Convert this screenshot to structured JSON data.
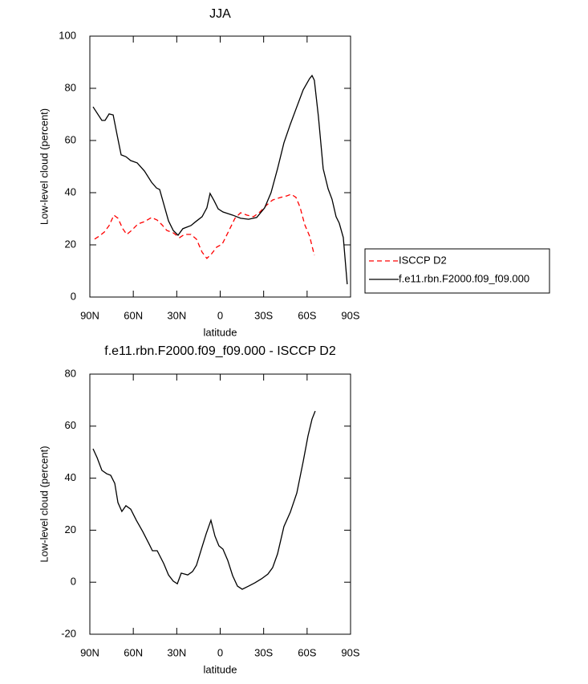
{
  "chart_data": [
    {
      "type": "line",
      "title": "JJA",
      "xlabel": "latitude",
      "ylabel": "Low-level cloud (percent)",
      "xlim": [
        90,
        -90
      ],
      "ylim": [
        0,
        100
      ],
      "xticks": [
        {
          "value": 90,
          "label": "90N"
        },
        {
          "value": 60,
          "label": "60N"
        },
        {
          "value": 30,
          "label": "30N"
        },
        0,
        {
          "value": -30,
          "label": "30S"
        },
        {
          "value": -60,
          "label": "60S"
        },
        {
          "value": -90,
          "label": "90S"
        }
      ],
      "yticks": [
        0,
        20,
        40,
        60,
        80,
        100
      ],
      "legend": "outside-right",
      "series": [
        {
          "name": "ISCCP D2",
          "color": "#ff0000",
          "dashed": true,
          "x": [
            86.7,
            83.4,
            80,
            76.7,
            73.4,
            70.6,
            67.3,
            64.5,
            61.2,
            56.8,
            52.3,
            47.4,
            43.5,
            40.2,
            36.8,
            32.4,
            28,
            24.7,
            20.2,
            16.4,
            12.5,
            9.2,
            5.9,
            2.5,
            -1.4,
            -5.8,
            -10.2,
            -14.1,
            -18.5,
            -23,
            -27.4,
            -31.8,
            -36.2,
            -41.8,
            -46.2,
            -49,
            -52.3,
            -55.1,
            -58.4,
            -61.7,
            -65
          ],
          "values": [
            22.2,
            23.4,
            24.9,
            27.4,
            31.4,
            30.2,
            26.2,
            24,
            25.5,
            28,
            28.9,
            30.5,
            29.5,
            27.7,
            25.5,
            24.6,
            22.8,
            24,
            24,
            22.2,
            17.2,
            14.8,
            16.6,
            19.1,
            20.3,
            25.2,
            30.2,
            32.3,
            31.4,
            30.8,
            32.6,
            35.1,
            37.2,
            38.2,
            38.8,
            39.4,
            38.2,
            34.5,
            27.7,
            23.4,
            16
          ]
        },
        {
          "name": "f.e11.rbn.F2000.f09_f09.000",
          "color": "#000000",
          "dashed": false,
          "x": [
            87.8,
            81.7,
            79.5,
            76.7,
            73.9,
            71.2,
            68.4,
            65.1,
            61.8,
            57.3,
            52.3,
            47.4,
            44,
            41.8,
            39,
            35.7,
            32.4,
            29.1,
            25.8,
            20.2,
            16.9,
            12.5,
            9.2,
            7,
            4.2,
            1.4,
            -1.9,
            -8.6,
            -14.1,
            -19.6,
            -25.2,
            -30.7,
            -35.1,
            -39.6,
            -44,
            -48.4,
            -52.9,
            -57.3,
            -61.7,
            -63.4,
            -65,
            -67.8,
            -71.1,
            -74.5,
            -77.2,
            -80,
            -82.2,
            -85,
            -87.7
          ],
          "values": [
            72.9,
            67.7,
            67.7,
            70.2,
            69.8,
            62.2,
            54.5,
            53.8,
            52.3,
            51.4,
            48.3,
            44,
            41.8,
            41.2,
            35.7,
            29.2,
            25.5,
            23.7,
            26.2,
            27.4,
            28.9,
            30.8,
            34.2,
            39.7,
            36.9,
            33.8,
            32.6,
            31.4,
            30.2,
            29.8,
            30.5,
            34.2,
            40,
            49.2,
            59.1,
            66.2,
            72.9,
            79.4,
            83.7,
            84.9,
            83.1,
            69.2,
            49.2,
            41.5,
            37.5,
            30.8,
            28.3,
            22.8,
            4.9
          ]
        }
      ]
    },
    {
      "type": "line",
      "title": "f.e11.rbn.F2000.f09_f09.000 - ISCCP D2",
      "xlabel": "latitude",
      "ylabel": "Low-level cloud (percent)",
      "xlim": [
        90,
        -90
      ],
      "ylim": [
        -20,
        80
      ],
      "xticks": [
        {
          "value": 90,
          "label": "90N"
        },
        {
          "value": 60,
          "label": "60N"
        },
        {
          "value": 30,
          "label": "30N"
        },
        0,
        {
          "value": -30,
          "label": "30S"
        },
        {
          "value": -60,
          "label": "60S"
        },
        {
          "value": -90,
          "label": "90S"
        }
      ],
      "yticks": [
        -20,
        0,
        20,
        40,
        60,
        80
      ],
      "series": [
        {
          "color": "#000000",
          "dashed": false,
          "x": [
            87.8,
            85,
            81.7,
            78.4,
            75.6,
            72.8,
            70.6,
            67.9,
            65.1,
            61.8,
            57.9,
            53.5,
            49,
            46.8,
            43.5,
            39,
            35.7,
            32.4,
            29.6,
            26.9,
            22.4,
            19.1,
            16.4,
            13,
            9.7,
            6.4,
            3.6,
            0.9,
            -1.9,
            -5.2,
            -8.6,
            -11.9,
            -15.2,
            -19.6,
            -24.1,
            -28.5,
            -32.9,
            -36.2,
            -39.6,
            -44,
            -48.4,
            -52.9,
            -57.3,
            -60.6,
            -63.4,
            -65.6
          ],
          "values": [
            51.3,
            47.9,
            43,
            41.7,
            41.1,
            38,
            30.6,
            27.2,
            29.4,
            28.1,
            23.8,
            19.5,
            14.6,
            12.1,
            12.1,
            7.2,
            2.8,
            0.4,
            -0.6,
            3.5,
            2.8,
            4.1,
            6.5,
            12.7,
            18.6,
            23.8,
            17.7,
            14,
            12.7,
            8.4,
            2.5,
            -1.5,
            -2.7,
            -1.5,
            -0.2,
            1.3,
            3.1,
            5.6,
            10.9,
            21.4,
            26.9,
            34.3,
            46.4,
            56.2,
            62.7,
            65.8
          ]
        }
      ]
    }
  ]
}
